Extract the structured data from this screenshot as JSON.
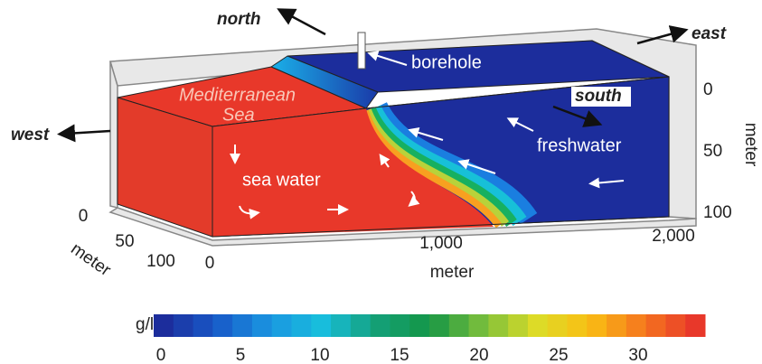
{
  "compass": {
    "north": "north",
    "east": "east",
    "west": "west",
    "south": "south"
  },
  "labels": {
    "borehole": "borehole",
    "sea_name": [
      "Mediterranean",
      "Sea"
    ],
    "sea_water": "sea water",
    "freshwater": "freshwater"
  },
  "axes": {
    "depth": {
      "title": "meter",
      "ticks": [
        "0",
        "50",
        "100"
      ]
    },
    "length": {
      "title": "meter",
      "ticks": [
        "0",
        "1,000",
        "2,000"
      ]
    },
    "width": {
      "title": "meter",
      "ticks": [
        "0",
        "50",
        "100"
      ]
    }
  },
  "colorbar": {
    "title": "g/l",
    "ticks": [
      0,
      5,
      10,
      15,
      20,
      25,
      30
    ]
  }
}
